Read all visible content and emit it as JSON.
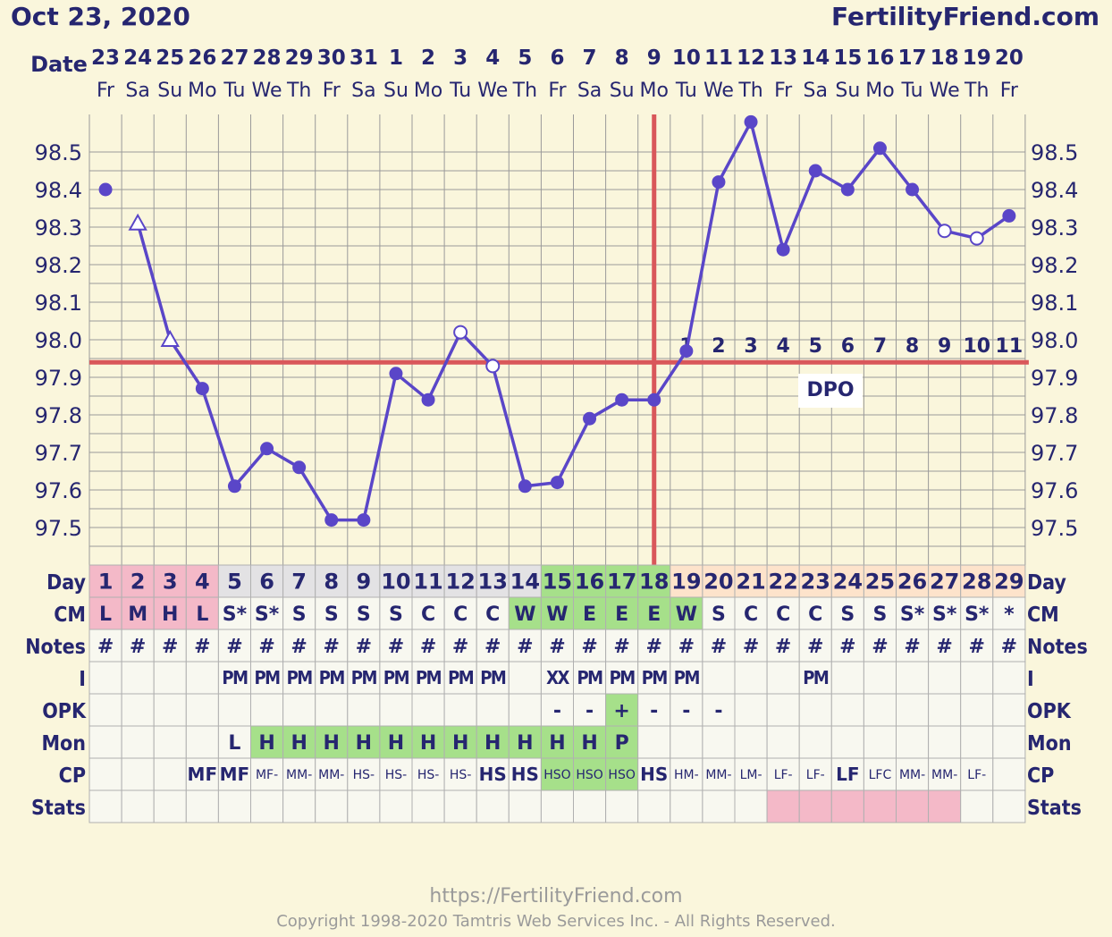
{
  "header": {
    "date": "Oct 23, 2020",
    "site": "FertilityFriend.com"
  },
  "footer": {
    "url": "https://FertilityFriend.com",
    "copyright": "Copyright 1998-2020 Tamtris Web Services Inc. - All Rights Reserved."
  },
  "colors": {
    "background": "#faf6dc",
    "line": "#5a46c8",
    "coverline": "#d9575a",
    "grid": "#9a9a9a",
    "text": "#262670",
    "menstrual": "#f4b9c8",
    "fertile": "#a6e08a",
    "luteal": "#fde3cb",
    "day_gray": "#e3e2e4"
  },
  "chart_data": {
    "type": "line",
    "title": "",
    "ylabel": "",
    "xlabel": "Date",
    "ylim": [
      97.4,
      98.6
    ],
    "y_ticks": [
      "98.5",
      "98.4",
      "98.3",
      "98.2",
      "98.1",
      "98.0",
      "97.9",
      "97.8",
      "97.7",
      "97.6",
      "97.5"
    ],
    "dates": [
      "23",
      "24",
      "25",
      "26",
      "27",
      "28",
      "29",
      "30",
      "31",
      "1",
      "2",
      "3",
      "4",
      "5",
      "6",
      "7",
      "8",
      "9",
      "10",
      "11",
      "12",
      "13",
      "14",
      "15",
      "16",
      "17",
      "18",
      "19",
      "20"
    ],
    "weekdays": [
      "Fr",
      "Sa",
      "Su",
      "Mo",
      "Tu",
      "We",
      "Th",
      "Fr",
      "Sa",
      "Su",
      "Mo",
      "Tu",
      "We",
      "Th",
      "Fr",
      "Sa",
      "Su",
      "Mo",
      "Tu",
      "We",
      "Th",
      "Fr",
      "Sa",
      "Su",
      "Mo",
      "Tu",
      "We",
      "Th",
      "Fr"
    ],
    "temps": [
      98.4,
      98.31,
      98.0,
      97.87,
      97.61,
      97.71,
      97.66,
      97.52,
      97.52,
      97.91,
      97.84,
      98.02,
      97.93,
      97.61,
      97.62,
      97.79,
      97.84,
      97.84,
      97.97,
      98.42,
      98.58,
      98.24,
      98.45,
      98.4,
      98.51,
      98.4,
      98.29,
      98.27,
      98.33
    ],
    "marker": [
      "filled",
      "triangle",
      "triangle",
      "filled",
      "filled",
      "filled",
      "filled",
      "filled",
      "filled",
      "filled",
      "filled",
      "open",
      "open",
      "filled",
      "filled",
      "filled",
      "filled",
      "filled",
      "filled",
      "filled",
      "filled",
      "filled",
      "filled",
      "filled",
      "filled",
      "filled",
      "open",
      "open",
      "filled"
    ],
    "line_breaks_after": [
      0
    ],
    "coverline": 97.94,
    "ovulation_day_index": 17,
    "dpo_label": "DPO",
    "dpo": [
      "1",
      "2",
      "3",
      "4",
      "5",
      "6",
      "7",
      "8",
      "9",
      "10",
      "11"
    ],
    "dpo_start_index": 18
  },
  "table": {
    "row_labels": [
      "Day",
      "CM",
      "Notes",
      "I",
      "OPK",
      "Mon",
      "CP",
      "Stats"
    ],
    "day": [
      "1",
      "2",
      "3",
      "4",
      "5",
      "6",
      "7",
      "8",
      "9",
      "10",
      "11",
      "12",
      "13",
      "14",
      "15",
      "16",
      "17",
      "18",
      "19",
      "20",
      "21",
      "22",
      "23",
      "24",
      "25",
      "26",
      "27",
      "28",
      "29"
    ],
    "day_bg": [
      "m",
      "m",
      "m",
      "m",
      "g",
      "g",
      "g",
      "g",
      "g",
      "g",
      "g",
      "g",
      "g",
      "g",
      "f",
      "f",
      "f",
      "f",
      "l",
      "l",
      "l",
      "l",
      "l",
      "l",
      "l",
      "l",
      "l",
      "l",
      "l"
    ],
    "cm": [
      "L",
      "M",
      "H",
      "L",
      "S*",
      "S*",
      "S",
      "S",
      "S",
      "S",
      "C",
      "C",
      "C",
      "W",
      "W",
      "E",
      "E",
      "E",
      "W",
      "S",
      "C",
      "C",
      "C",
      "S",
      "S",
      "S*",
      "S*",
      "S*",
      "*"
    ],
    "cm_bg": [
      "m",
      "m",
      "m",
      "m",
      "",
      "",
      "",
      "",
      "",
      "",
      "",
      "",
      "",
      "f",
      "f",
      "f",
      "f",
      "f",
      "f",
      "",
      "",
      "",
      "",
      "",
      "",
      "",
      "",
      "",
      ""
    ],
    "notes": [
      "#",
      "#",
      "#",
      "#",
      "#",
      "#",
      "#",
      "#",
      "#",
      "#",
      "#",
      "#",
      "#",
      "#",
      "#",
      "#",
      "#",
      "#",
      "#",
      "#",
      "#",
      "#",
      "#",
      "#",
      "#",
      "#",
      "#",
      "#",
      "#"
    ],
    "intercourse": [
      "",
      "",
      "",
      "",
      "PM",
      "PM",
      "PM",
      "PM",
      "PM",
      "PM",
      "PM",
      "PM",
      "PM",
      "",
      "XX",
      "PM",
      "PM",
      "PM",
      "PM",
      "",
      "",
      "",
      "PM",
      "",
      "",
      "",
      "",
      "",
      ""
    ],
    "opk": [
      "",
      "",
      "",
      "",
      "",
      "",
      "",
      "",
      "",
      "",
      "",
      "",
      "",
      "",
      "-",
      "-",
      "+",
      "-",
      "-",
      "-",
      "",
      "",
      "",
      "",
      "",
      "",
      "",
      "",
      ""
    ],
    "opk_bg": [
      "",
      "",
      "",
      "",
      "",
      "",
      "",
      "",
      "",
      "",
      "",
      "",
      "",
      "",
      "",
      "",
      "f",
      "",
      "",
      "",
      "",
      "",
      "",
      "",
      "",
      "",
      "",
      "",
      ""
    ],
    "mon": [
      "",
      "",
      "",
      "",
      "L",
      "H",
      "H",
      "H",
      "H",
      "H",
      "H",
      "H",
      "H",
      "H",
      "H",
      "H",
      "P",
      "",
      "",
      "",
      "",
      "",
      "",
      "",
      "",
      "",
      "",
      "",
      ""
    ],
    "mon_bg": [
      "",
      "",
      "",
      "",
      "",
      "f",
      "f",
      "f",
      "f",
      "f",
      "f",
      "f",
      "f",
      "f",
      "f",
      "f",
      "f",
      "",
      "",
      "",
      "",
      "",
      "",
      "",
      "",
      "",
      "",
      "",
      ""
    ],
    "cp": [
      "",
      "",
      "",
      "MF",
      "MF",
      "MF-",
      "MM-",
      "MM-",
      "HS-",
      "HS-",
      "HS-",
      "HS-",
      "HS",
      "HS",
      "HSO",
      "HSO",
      "HSO",
      "HS",
      "HM-",
      "MM-",
      "LM-",
      "LF-",
      "LF-",
      "LF",
      "LFC",
      "MM-",
      "MM-",
      "LF-",
      ""
    ],
    "cp_bg": [
      "",
      "",
      "",
      "",
      "",
      "",
      "",
      "",
      "",
      "",
      "",
      "",
      "",
      "",
      "f",
      "f",
      "f",
      "",
      "",
      "",
      "",
      "",
      "",
      "",
      "",
      "",
      "",
      "",
      ""
    ],
    "stats_bg": [
      "",
      "",
      "",
      "",
      "",
      "",
      "",
      "",
      "",
      "",
      "",
      "",
      "",
      "",
      "",
      "",
      "",
      "",
      "",
      "",
      "",
      "p",
      "p",
      "p",
      "p",
      "p",
      "p",
      "",
      ""
    ]
  }
}
